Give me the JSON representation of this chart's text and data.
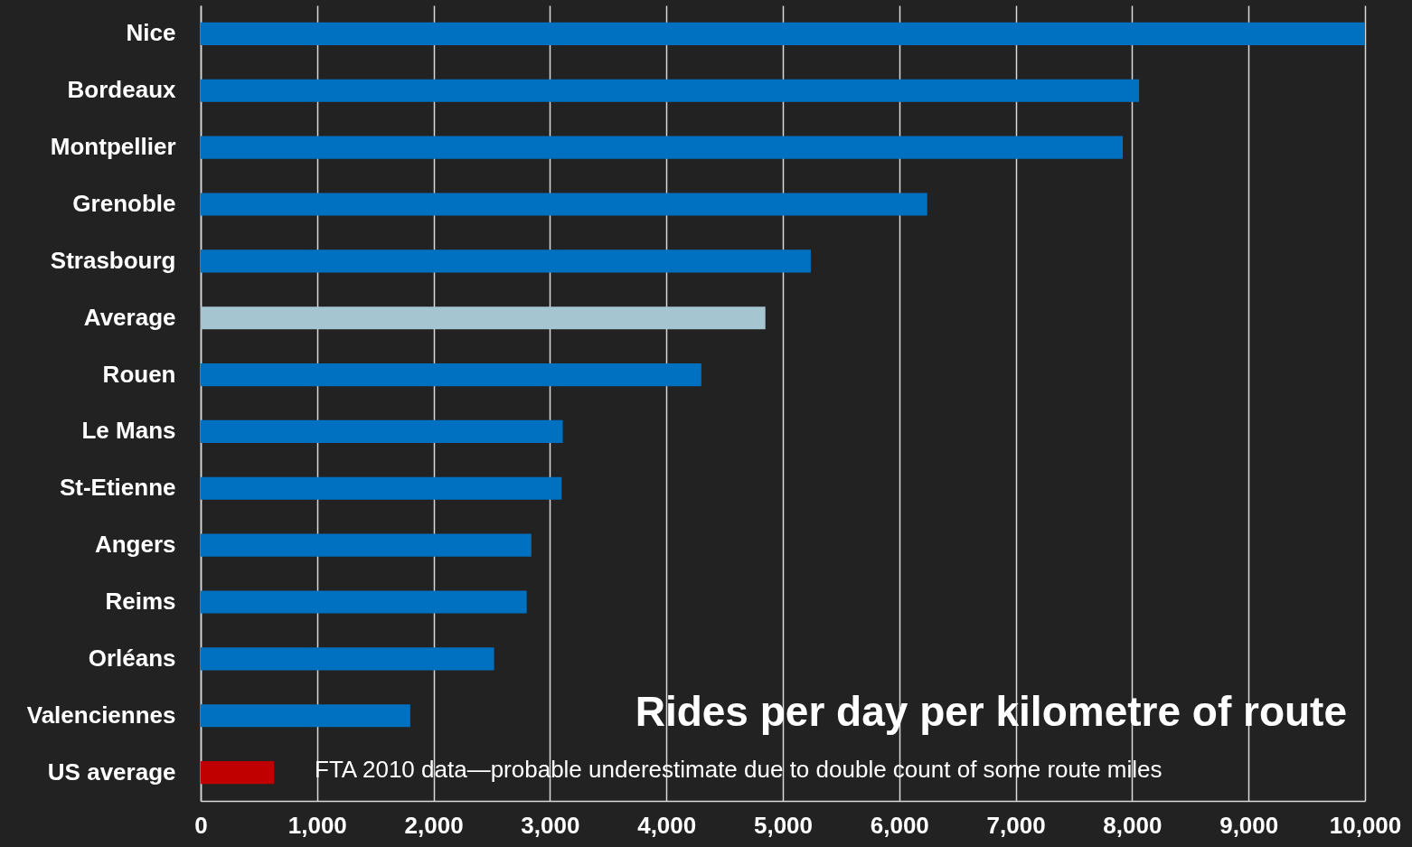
{
  "chart_data": {
    "type": "bar",
    "orientation": "horizontal",
    "title": "Rides per day per kilometre of route",
    "categories": [
      "Nice",
      "Bordeaux",
      "Montpellier",
      "Grenoble",
      "Strasbourg",
      "Average",
      "Rouen",
      "Le Mans",
      "St-Etienne",
      "Angers",
      "Reims",
      "Orléans",
      "Valenciennes",
      "US average"
    ],
    "values": [
      10000,
      8060,
      7920,
      6240,
      5240,
      4850,
      4300,
      3110,
      3100,
      2840,
      2800,
      2520,
      1800,
      630
    ],
    "colors": [
      "#0070c0",
      "#0070c0",
      "#0070c0",
      "#0070c0",
      "#0070c0",
      "#a5c5d0",
      "#0070c0",
      "#0070c0",
      "#0070c0",
      "#0070c0",
      "#0070c0",
      "#0070c0",
      "#0070c0",
      "#c00000"
    ],
    "xlim": [
      0,
      10000
    ],
    "xticks": [
      0,
      {
        "value": 1000,
        "label": "1,000"
      },
      {
        "value": 2000,
        "label": "2,000"
      },
      {
        "value": 3000,
        "label": "3,000"
      },
      {
        "value": 4000,
        "label": "4,000"
      },
      {
        "value": 5000,
        "label": "5,000"
      },
      {
        "value": 6000,
        "label": "6,000"
      },
      {
        "value": 7000,
        "label": "7,000"
      },
      {
        "value": 8000,
        "label": "8,000"
      },
      {
        "value": 9000,
        "label": "9,000"
      },
      {
        "value": 10000,
        "label": "10,000"
      }
    ],
    "grid": "x",
    "annotations": [
      "FTA 2010 data—probable underestimate due to double count of some route miles"
    ]
  }
}
